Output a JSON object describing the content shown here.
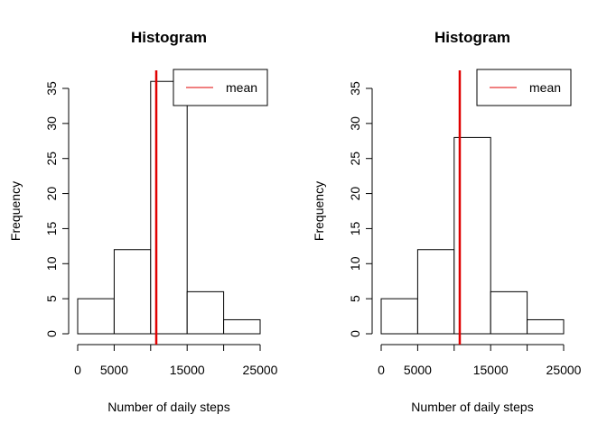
{
  "chart_data": [
    {
      "type": "bar",
      "title": "Histogram",
      "xlabel": "Number of daily steps",
      "ylabel": "Frequency",
      "bins": [
        [
          0,
          5000
        ],
        [
          5000,
          10000
        ],
        [
          10000,
          15000
        ],
        [
          15000,
          20000
        ],
        [
          20000,
          25000
        ]
      ],
      "values": [
        5,
        12,
        36,
        6,
        2
      ],
      "xlim": [
        0,
        25000
      ],
      "ylim": [
        0,
        35
      ],
      "x_ticks": [
        0,
        5000,
        10000,
        15000,
        20000,
        25000
      ],
      "x_tick_labels": [
        "0",
        "5000",
        "",
        "15000",
        "",
        "25000"
      ],
      "y_ticks": [
        0,
        5,
        10,
        15,
        20,
        25,
        30,
        35
      ],
      "y_tick_labels": [
        "0",
        "5",
        "10",
        "15",
        "20",
        "25",
        "30",
        "35"
      ],
      "mean": 10766,
      "mean_color": "#e00000",
      "legend": {
        "label": "mean",
        "placement": "top-right"
      }
    },
    {
      "type": "bar",
      "title": "Histogram",
      "xlabel": "Number of daily steps",
      "ylabel": "Frequency",
      "bins": [
        [
          0,
          5000
        ],
        [
          5000,
          10000
        ],
        [
          10000,
          15000
        ],
        [
          15000,
          20000
        ],
        [
          20000,
          25000
        ]
      ],
      "values": [
        5,
        12,
        28,
        6,
        2
      ],
      "xlim": [
        0,
        25000
      ],
      "ylim": [
        0,
        35
      ],
      "x_ticks": [
        0,
        5000,
        10000,
        15000,
        20000,
        25000
      ],
      "x_tick_labels": [
        "0",
        "5000",
        "",
        "15000",
        "",
        "25000"
      ],
      "y_ticks": [
        0,
        5,
        10,
        15,
        20,
        25,
        30,
        35
      ],
      "y_tick_labels": [
        "0",
        "5",
        "10",
        "15",
        "20",
        "25",
        "30",
        "35"
      ],
      "mean": 10766,
      "mean_color": "#e00000",
      "legend": {
        "label": "mean",
        "placement": "top-right"
      }
    }
  ]
}
